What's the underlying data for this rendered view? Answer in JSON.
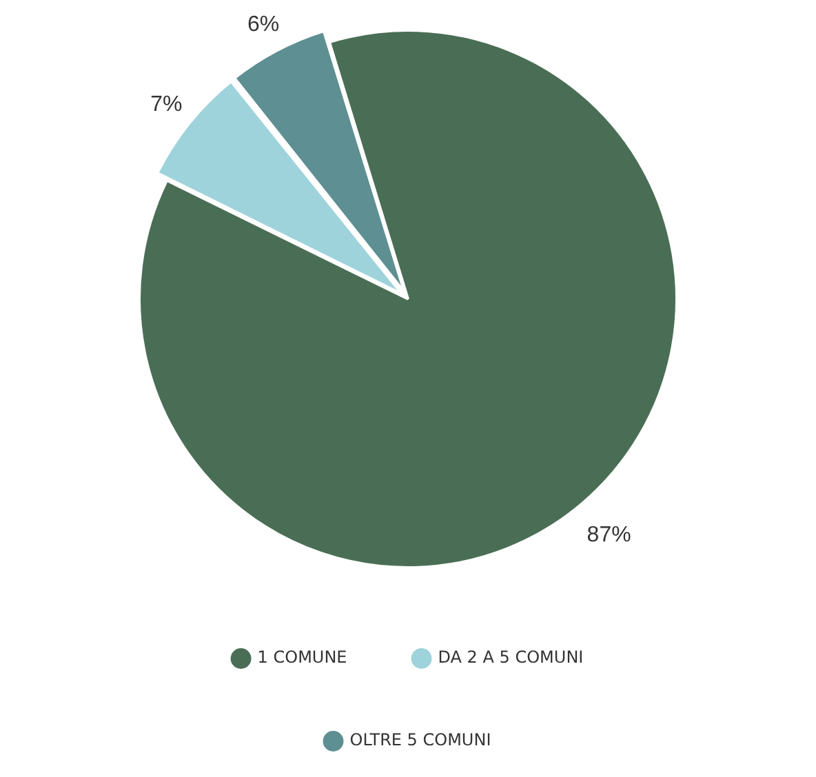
{
  "chart_data": {
    "type": "pie",
    "categories": [
      "1 COMUNE",
      "DA 2 A 5 COMUNI",
      "OLTRE 5 COMUNI"
    ],
    "values": [
      87,
      7,
      6
    ],
    "colors": [
      "#4a6e55",
      "#9fd3dc",
      "#5e8f92"
    ],
    "value_labels": [
      "87%",
      "7%",
      "6%"
    ],
    "legend": "bottom"
  }
}
